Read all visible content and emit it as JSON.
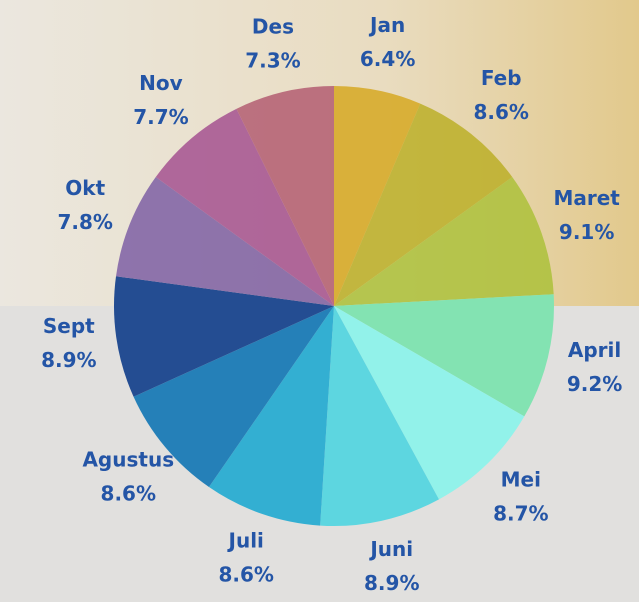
{
  "chart_data": {
    "type": "pie",
    "categories": [
      "Jan",
      "Feb",
      "Maret",
      "April",
      "Mei",
      "Juni",
      "Juli",
      "Agustus",
      "Sept",
      "Okt",
      "Nov",
      "Des"
    ],
    "values": [
      6.4,
      8.6,
      9.1,
      9.2,
      8.7,
      8.9,
      8.6,
      8.6,
      8.9,
      7.8,
      7.7,
      7.3
    ],
    "value_labels": [
      "6.4%",
      "8.6%",
      "9.1%",
      "9.2%",
      "8.7%",
      "8.9%",
      "8.6%",
      "8.6%",
      "8.9%",
      "7.8%",
      "7.7%",
      "7.3%"
    ],
    "colors": [
      "#d6a61c",
      "#b9ad22",
      "#a9bf36",
      "#83e3b2",
      "#92f2ea",
      "#5dd6e0",
      "#33afd2",
      "#2580b8",
      "#244d92",
      "#7a5aa2",
      "#a24c8e",
      "#b1586e"
    ]
  }
}
